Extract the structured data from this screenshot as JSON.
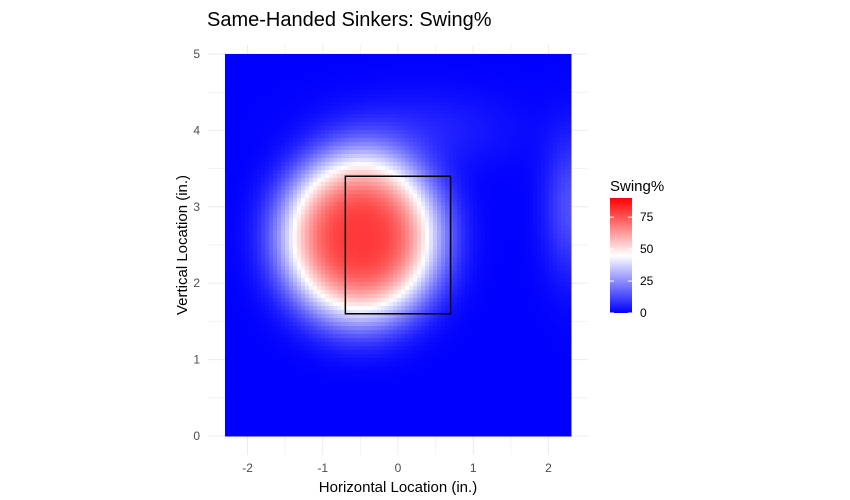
{
  "chart_data": {
    "type": "heatmap",
    "title": "Same-Handed Sinkers: Swing%",
    "xlabel": "Horizontal Location (in.)",
    "ylabel": "Vertical Location (in.)",
    "xlim": [
      -2.3,
      2.3
    ],
    "ylim": [
      0,
      5
    ],
    "x_ticks": [
      -2,
      -1,
      0,
      1,
      2
    ],
    "x_tick_labels": [
      "-2",
      "-1",
      "0",
      "1",
      "2"
    ],
    "y_ticks": [
      0,
      1,
      2,
      3,
      4,
      5
    ],
    "y_tick_labels": [
      "0",
      "1",
      "2",
      "3",
      "4",
      "5"
    ],
    "grid": true,
    "legend": {
      "title": "Swing%",
      "position": "right",
      "range": [
        0,
        90
      ],
      "ticks": [
        0,
        25,
        50,
        75
      ],
      "tick_labels": [
        "0",
        "25",
        "50",
        "75"
      ],
      "colors": {
        "low": "#0000ff",
        "mid": "#ffffff",
        "high": "#ff0000",
        "midpoint": 45
      }
    },
    "strike_zone": {
      "x": [
        -0.7,
        0.7
      ],
      "y": [
        1.6,
        3.4
      ]
    },
    "value_model": {
      "description_of_surface": "Swing% estimated from colour: peak ~80% near (-0.5, 2.6); near 0 elsewhere",
      "peak": {
        "x": -0.5,
        "y": 2.6,
        "value": 80
      },
      "falloff": "smooth radial, ~50% at radius ~1.0 in horizontally and ~1.0 in vertically"
    }
  },
  "colors": {
    "grid": "#ebebeb",
    "axis_text": "#4d4d4d",
    "title": "#000000",
    "zone_stroke": "#000000"
  }
}
